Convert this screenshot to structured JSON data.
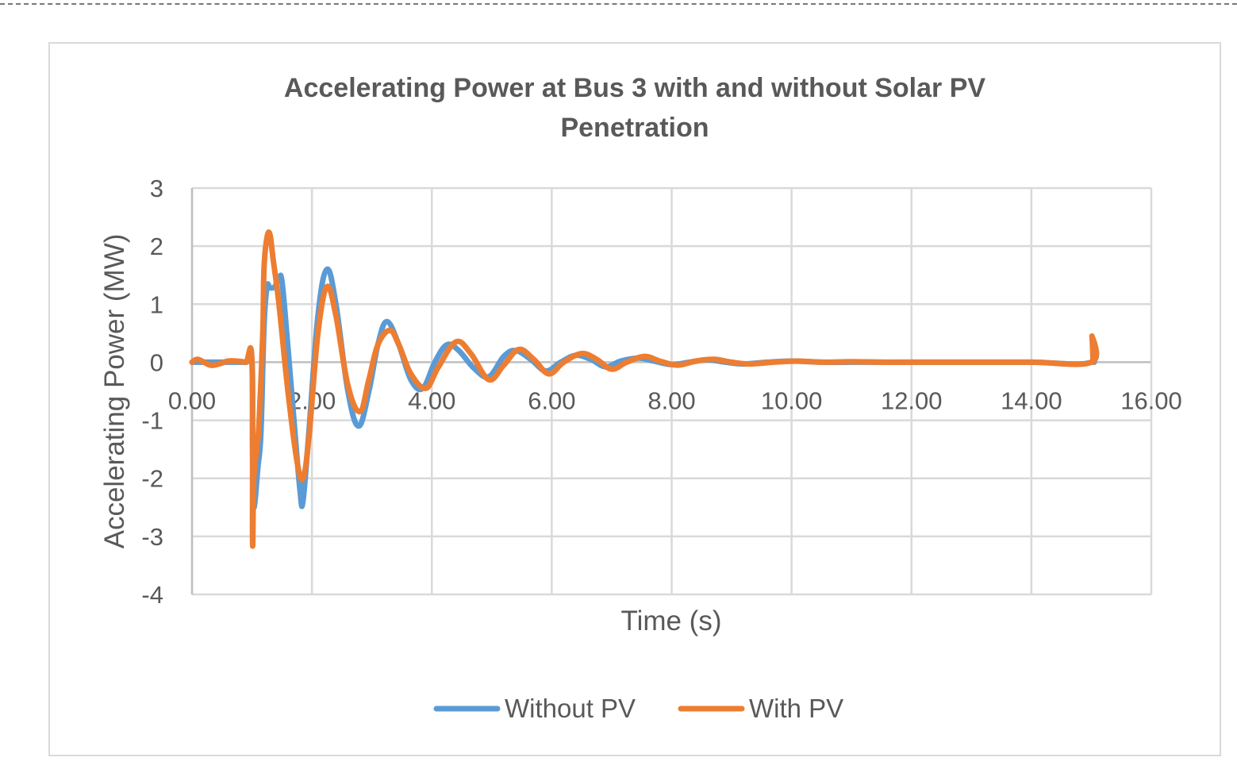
{
  "chart_data": {
    "type": "line",
    "title": "Accelerating Power at Bus 3 with and without Solar PV Penetration",
    "title_lines": [
      "Accelerating Power at Bus 3 with and without Solar PV",
      "Penetration"
    ],
    "xlabel": "Time (s)",
    "ylabel": "Accelerating Power (MW)",
    "xlim": [
      0,
      16
    ],
    "ylim": [
      -4,
      3
    ],
    "x_ticks": [
      "0.00",
      "2.00",
      "4.00",
      "6.00",
      "8.00",
      "10.00",
      "12.00",
      "14.00",
      "16.00"
    ],
    "y_ticks": [
      "3",
      "2",
      "1",
      "0",
      "-1",
      "-2",
      "-3",
      "-4"
    ],
    "grid": true,
    "legend_position": "bottom",
    "series": [
      {
        "name": "Without PV",
        "color": "#5b9bd5",
        "x": [
          0.0,
          0.1,
          0.3,
          0.6,
          0.9,
          1.0,
          1.01,
          1.03,
          1.1,
          1.15,
          1.2,
          1.25,
          1.3,
          1.38,
          1.45,
          1.5,
          1.58,
          1.7,
          1.8,
          1.85,
          1.95,
          2.1,
          2.25,
          2.4,
          2.6,
          2.78,
          2.95,
          3.1,
          3.25,
          3.45,
          3.65,
          3.85,
          4.05,
          4.25,
          4.45,
          4.7,
          4.95,
          5.2,
          5.4,
          5.65,
          5.9,
          6.15,
          6.4,
          6.65,
          6.9,
          7.15,
          7.45,
          7.7,
          8.0,
          8.3,
          8.6,
          8.9,
          9.2,
          9.6,
          10.0,
          10.5,
          11.0,
          11.5,
          12.0,
          13.0,
          14.0,
          15.0,
          15.02,
          15.05
        ],
        "values": [
          0.0,
          0.0,
          0.0,
          0.0,
          0.0,
          0.0,
          -1.5,
          -2.5,
          -1.8,
          -1.2,
          0.6,
          1.3,
          1.28,
          1.3,
          1.45,
          1.4,
          0.5,
          -1.0,
          -2.2,
          -2.4,
          -1.2,
          0.8,
          1.6,
          1.0,
          -0.5,
          -1.1,
          -0.5,
          0.3,
          0.7,
          0.3,
          -0.3,
          -0.45,
          0.0,
          0.3,
          0.2,
          -0.1,
          -0.25,
          0.1,
          0.2,
          0.05,
          -0.15,
          0.0,
          0.12,
          0.05,
          -0.08,
          0.02,
          0.07,
          0.02,
          -0.04,
          0.0,
          0.04,
          0.0,
          -0.03,
          0.0,
          0.02,
          0.0,
          0.0,
          0.0,
          0.0,
          0.0,
          0.0,
          0.0,
          0.4,
          0.0
        ]
      },
      {
        "name": "With PV",
        "color": "#ed7d31",
        "x": [
          0.0,
          0.1,
          0.3,
          0.45,
          0.6,
          0.75,
          0.9,
          1.0,
          1.01,
          1.03,
          1.08,
          1.12,
          1.18,
          1.2,
          1.25,
          1.3,
          1.35,
          1.45,
          1.6,
          1.75,
          1.85,
          1.95,
          2.1,
          2.25,
          2.4,
          2.6,
          2.8,
          2.95,
          3.1,
          3.3,
          3.45,
          3.65,
          3.9,
          4.1,
          4.4,
          4.65,
          4.95,
          5.2,
          5.45,
          5.7,
          5.95,
          6.2,
          6.5,
          6.75,
          7.0,
          7.25,
          7.55,
          7.8,
          8.1,
          8.4,
          8.7,
          9.0,
          9.3,
          9.7,
          10.1,
          10.5,
          11.0,
          11.5,
          12.0,
          13.0,
          14.0,
          15.0,
          15.01,
          15.03
        ],
        "values": [
          0.0,
          0.05,
          -0.05,
          -0.03,
          0.02,
          0.02,
          0.0,
          0.0,
          -3.1,
          -2.0,
          -1.5,
          -1.0,
          0.5,
          1.6,
          2.15,
          2.2,
          1.8,
          1.0,
          -0.5,
          -1.7,
          -2.0,
          -1.3,
          0.5,
          1.3,
          0.8,
          -0.4,
          -0.85,
          -0.3,
          0.3,
          0.55,
          0.3,
          -0.2,
          -0.45,
          -0.1,
          0.35,
          0.15,
          -0.3,
          -0.05,
          0.22,
          0.05,
          -0.2,
          0.0,
          0.15,
          0.05,
          -0.12,
          0.0,
          0.1,
          0.02,
          -0.05,
          0.02,
          0.05,
          0.0,
          -0.03,
          0.0,
          0.02,
          0.0,
          0.01,
          0.0,
          0.0,
          0.0,
          0.0,
          0.0,
          0.45,
          0.0
        ]
      }
    ]
  },
  "legend": {
    "items": [
      {
        "label": "Without PV",
        "color": "#5b9bd5"
      },
      {
        "label": "With PV",
        "color": "#ed7d31"
      }
    ]
  }
}
